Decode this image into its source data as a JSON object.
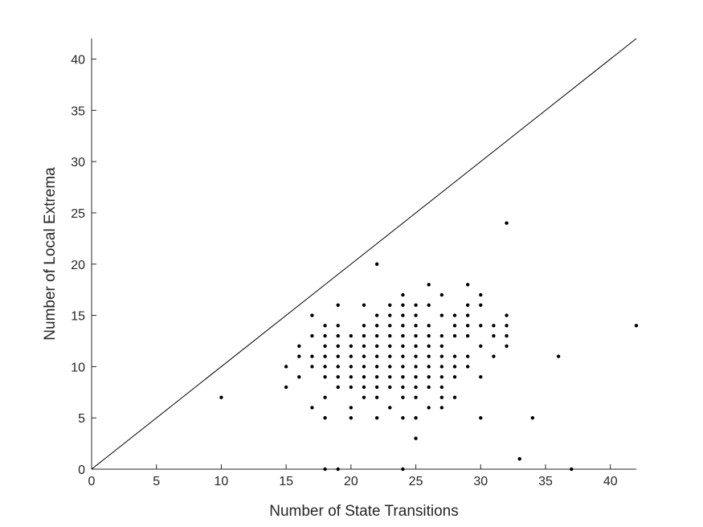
{
  "chart_data": {
    "type": "scatter",
    "title": "",
    "xlabel": "Number of State Transitions",
    "ylabel": "Number of Local Extrema",
    "xlim": [
      0,
      42
    ],
    "ylim": [
      0,
      42
    ],
    "xticks": [
      0,
      5,
      10,
      15,
      20,
      25,
      30,
      35,
      40
    ],
    "yticks": [
      0,
      5,
      10,
      15,
      20,
      25,
      30,
      35,
      40
    ],
    "grid": false,
    "reference_line": {
      "from": [
        0,
        0
      ],
      "to": [
        42,
        42
      ]
    },
    "marker_color": "#000000",
    "line_color": "#000000",
    "axis_color": "#262626",
    "series": [
      {
        "points": [
          [
            10,
            7
          ],
          [
            15,
            10
          ],
          [
            15,
            8
          ],
          [
            16,
            11
          ],
          [
            16,
            9
          ],
          [
            16,
            12
          ],
          [
            17,
            15
          ],
          [
            17,
            13
          ],
          [
            17,
            11
          ],
          [
            17,
            10
          ],
          [
            17,
            6
          ],
          [
            18,
            14
          ],
          [
            18,
            13
          ],
          [
            18,
            12
          ],
          [
            18,
            11
          ],
          [
            18,
            10
          ],
          [
            18,
            9
          ],
          [
            18,
            7
          ],
          [
            18,
            5
          ],
          [
            18,
            0
          ],
          [
            19,
            16
          ],
          [
            19,
            14
          ],
          [
            19,
            13
          ],
          [
            19,
            12
          ],
          [
            19,
            11
          ],
          [
            19,
            10
          ],
          [
            19,
            9
          ],
          [
            19,
            8
          ],
          [
            19,
            0
          ],
          [
            20,
            13
          ],
          [
            20,
            12
          ],
          [
            20,
            11
          ],
          [
            20,
            10
          ],
          [
            20,
            9
          ],
          [
            20,
            8
          ],
          [
            20,
            6
          ],
          [
            20,
            5
          ],
          [
            21,
            16
          ],
          [
            21,
            14
          ],
          [
            21,
            13
          ],
          [
            21,
            12
          ],
          [
            21,
            11
          ],
          [
            21,
            10
          ],
          [
            21,
            9
          ],
          [
            21,
            8
          ],
          [
            21,
            7
          ],
          [
            22,
            20
          ],
          [
            22,
            15
          ],
          [
            22,
            14
          ],
          [
            22,
            13
          ],
          [
            22,
            12
          ],
          [
            22,
            11
          ],
          [
            22,
            10
          ],
          [
            22,
            9
          ],
          [
            22,
            8
          ],
          [
            22,
            7
          ],
          [
            22,
            5
          ],
          [
            23,
            16
          ],
          [
            23,
            15
          ],
          [
            23,
            14
          ],
          [
            23,
            13
          ],
          [
            23,
            12
          ],
          [
            23,
            11
          ],
          [
            23,
            10
          ],
          [
            23,
            9
          ],
          [
            23,
            8
          ],
          [
            23,
            6
          ],
          [
            24,
            17
          ],
          [
            24,
            16
          ],
          [
            24,
            15
          ],
          [
            24,
            14
          ],
          [
            24,
            13
          ],
          [
            24,
            12
          ],
          [
            24,
            11
          ],
          [
            24,
            10
          ],
          [
            24,
            9
          ],
          [
            24,
            8
          ],
          [
            24,
            7
          ],
          [
            24,
            5
          ],
          [
            24,
            0
          ],
          [
            25,
            16
          ],
          [
            25,
            15
          ],
          [
            25,
            14
          ],
          [
            25,
            13
          ],
          [
            25,
            12
          ],
          [
            25,
            11
          ],
          [
            25,
            10
          ],
          [
            25,
            9
          ],
          [
            25,
            8
          ],
          [
            25,
            7
          ],
          [
            25,
            5
          ],
          [
            25,
            3
          ],
          [
            26,
            18
          ],
          [
            26,
            16
          ],
          [
            26,
            14
          ],
          [
            26,
            13
          ],
          [
            26,
            12
          ],
          [
            26,
            11
          ],
          [
            26,
            10
          ],
          [
            26,
            9
          ],
          [
            26,
            8
          ],
          [
            26,
            6
          ],
          [
            27,
            17
          ],
          [
            27,
            15
          ],
          [
            27,
            13
          ],
          [
            27,
            12
          ],
          [
            27,
            11
          ],
          [
            27,
            10
          ],
          [
            27,
            9
          ],
          [
            27,
            8
          ],
          [
            27,
            7
          ],
          [
            27,
            6
          ],
          [
            28,
            15
          ],
          [
            28,
            14
          ],
          [
            28,
            13
          ],
          [
            28,
            11
          ],
          [
            28,
            10
          ],
          [
            28,
            9
          ],
          [
            28,
            7
          ],
          [
            29,
            18
          ],
          [
            29,
            16
          ],
          [
            29,
            15
          ],
          [
            29,
            14
          ],
          [
            29,
            13
          ],
          [
            29,
            11
          ],
          [
            29,
            10
          ],
          [
            30,
            17
          ],
          [
            30,
            16
          ],
          [
            30,
            14
          ],
          [
            30,
            12
          ],
          [
            30,
            9
          ],
          [
            30,
            5
          ],
          [
            31,
            14
          ],
          [
            31,
            13
          ],
          [
            31,
            11
          ],
          [
            32,
            24
          ],
          [
            32,
            15
          ],
          [
            32,
            14
          ],
          [
            32,
            13
          ],
          [
            32,
            12
          ],
          [
            33,
            1
          ],
          [
            34,
            5
          ],
          [
            36,
            11
          ],
          [
            37,
            0
          ],
          [
            42,
            14
          ]
        ]
      }
    ]
  }
}
